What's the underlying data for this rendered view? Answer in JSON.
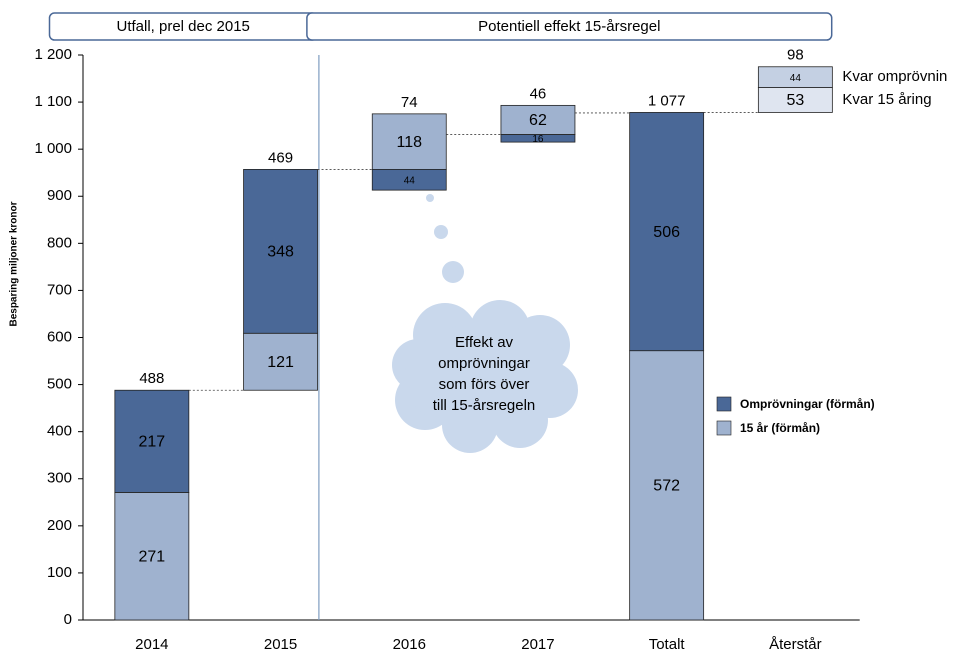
{
  "chart_data": {
    "type": "waterfall",
    "y_label": "Besparing miljoner kronor",
    "headers": [
      {
        "text": "Utfall, prel dec 2015",
        "from": 0,
        "to": 1
      },
      {
        "text": "Potentiell effekt 15-årsregel",
        "from": 2,
        "to": 5
      }
    ],
    "divider_after": 1,
    "categories": [
      "2014",
      "2015",
      "2016",
      "2017",
      "Totalt",
      "Återstår"
    ],
    "measure": [
      "relative",
      "relative",
      "relative",
      "relative",
      "total",
      "relative"
    ],
    "series": [
      {
        "name": "Omprövningar (förmån)",
        "color": "#4a6897",
        "label_color": "#ffffff",
        "in_legend": true,
        "values": [
          217,
          348,
          -44,
          -16,
          506,
          null
        ],
        "value_labels": [
          "217",
          "348",
          "44",
          "16",
          "506",
          null
        ]
      },
      {
        "name": "15 år (förmån)",
        "color": "#9fb2cf",
        "label_color": "#000000",
        "in_legend": true,
        "values": [
          271,
          121,
          118,
          62,
          572,
          null
        ]
      },
      {
        "name": "Kvar omprövnin",
        "color": "#c4d0e3",
        "label_color": "#000000",
        "in_legend": false,
        "values": [
          null,
          null,
          null,
          null,
          null,
          44
        ]
      },
      {
        "name": "Kvar 15 åring",
        "color": "#dfe5f0",
        "label_color": "#000000",
        "in_legend": false,
        "values": [
          null,
          null,
          null,
          null,
          null,
          53
        ]
      }
    ],
    "totals": {
      "values": [
        488,
        469,
        74,
        46,
        1077,
        98
      ],
      "value_labels": [
        "488",
        "469",
        "74",
        "46",
        "1 077",
        "98"
      ]
    },
    "annotation_lines": [
      "Effekt av",
      "omprövningar",
      "som förs över",
      "till 15-årsregeln"
    ],
    "ylim": [
      0,
      1200
    ],
    "yticks": [
      0,
      100,
      200,
      300,
      400,
      500,
      600,
      700,
      800,
      900,
      {
        "value": 1000,
        "label": "1 000"
      },
      {
        "value": 1100,
        "label": "1 100"
      },
      {
        "value": 1200,
        "label": "1 200"
      }
    ]
  }
}
